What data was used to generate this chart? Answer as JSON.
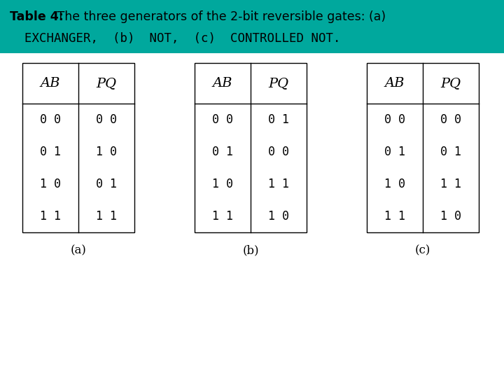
{
  "title_bold": "Table 4:",
  "title_rest": " The three generators of the 2-bit reversible gates: (a)",
  "subtitle": "  EXCHANGER,  (b)  NOT,  (c)  CONTROLLED NOT.",
  "header_bg": "#00A89D",
  "header_text_color": "#000000",
  "table_bg": "#FFFFFF",
  "body_bg": "#FFFFFF",
  "tables": [
    {
      "label": "(a)",
      "header": [
        "AB",
        "PQ"
      ],
      "rows": [
        [
          "0 0",
          "0 0"
        ],
        [
          "0 1",
          "1 0"
        ],
        [
          "1 0",
          "0 1"
        ],
        [
          "1 1",
          "1 1"
        ]
      ]
    },
    {
      "label": "(b)",
      "header": [
        "AB",
        "PQ"
      ],
      "rows": [
        [
          "0 0",
          "0 1"
        ],
        [
          "0 1",
          "0 0"
        ],
        [
          "1 0",
          "1 1"
        ],
        [
          "1 1",
          "1 0"
        ]
      ]
    },
    {
      "label": "(c)",
      "header": [
        "AB",
        "PQ"
      ],
      "rows": [
        [
          "0 0",
          "0 0"
        ],
        [
          "0 1",
          "0 1"
        ],
        [
          "1 0",
          "1 1"
        ],
        [
          "1 1",
          "1 0"
        ]
      ]
    }
  ],
  "title_fontsize": 12.5,
  "subtitle_fontsize": 12.5,
  "header_fontsize": 14,
  "cell_fontsize": 12,
  "label_fontsize": 12
}
